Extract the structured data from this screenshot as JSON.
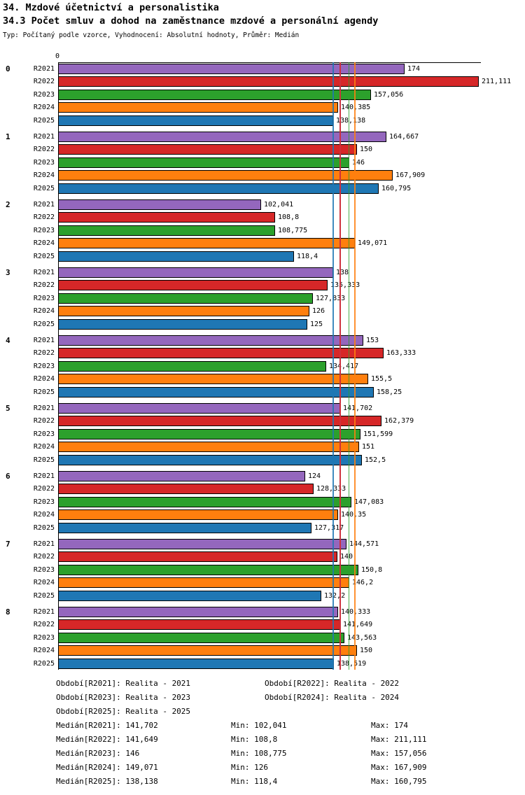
{
  "header": {
    "title": "34. Mzdové účetnictví a personalistika",
    "subtitle": "34.3 Počet smluv a dohod na zaměstnance mzdové a personální agendy",
    "meta": "Typ: Počítaný podle vzorce, Vyhodnocení: Absolutní hodnoty, Průměr: Medián"
  },
  "chart_data": {
    "type": "bar",
    "orientation": "horizontal",
    "title": "34.3 Počet smluv a dohod na zaměstnance mzdové a personální agendy",
    "xlabel": "",
    "ylabel": "",
    "xlim": [
      0,
      211.111
    ],
    "x_ticks": [
      "0"
    ],
    "grid": false,
    "legend_position": "bottom",
    "categories": [
      "0",
      "1",
      "2",
      "3",
      "4",
      "5",
      "6",
      "7",
      "8"
    ],
    "series": [
      {
        "name": "R2021",
        "color": "#9467bd",
        "values": [
          174,
          164.667,
          102.041,
          138,
          153,
          141.702,
          124,
          144.571,
          140.333
        ],
        "labels": [
          "174",
          "164,667",
          "102,041",
          "138",
          "153",
          "141,702",
          "124",
          "144,571",
          "140,333"
        ],
        "median": 141.702
      },
      {
        "name": "R2022",
        "color": "#d62728",
        "values": [
          211.111,
          150,
          108.8,
          135.333,
          163.333,
          162.379,
          128.333,
          140,
          141.649
        ],
        "labels": [
          "211,111",
          "150",
          "108,8",
          "135,333",
          "163,333",
          "162,379",
          "128,333",
          "140",
          "141,649"
        ],
        "median": 141.649
      },
      {
        "name": "R2023",
        "color": "#2ca02c",
        "values": [
          157.056,
          146,
          108.775,
          127.833,
          134.417,
          151.599,
          147.083,
          150.8,
          143.563
        ],
        "labels": [
          "157,056",
          "146",
          "108,775",
          "127,833",
          "134,417",
          "151,599",
          "147,083",
          "150,8",
          "143,563"
        ],
        "median": 146
      },
      {
        "name": "R2024",
        "color": "#ff7f0e",
        "values": [
          140.385,
          167.909,
          149.071,
          126,
          155.5,
          151,
          140.35,
          146.2,
          150
        ],
        "labels": [
          "140,385",
          "167,909",
          "149,071",
          "126",
          "155,5",
          "151",
          "140,35",
          "146,2",
          "150"
        ],
        "median": 149.071
      },
      {
        "name": "R2025",
        "color": "#1f77b4",
        "values": [
          138.138,
          160.795,
          118.4,
          125,
          158.25,
          152.5,
          127.317,
          132.2,
          138.519
        ],
        "labels": [
          "138,138",
          "160,795",
          "118,4",
          "125",
          "158,25",
          "152,5",
          "127,317",
          "132,2",
          "138,519"
        ],
        "median": 138.138
      }
    ]
  },
  "legend": {
    "items": [
      "Období[R2021]: Realita - 2021",
      "Období[R2022]: Realita - 2022",
      "Období[R2023]: Realita - 2023",
      "Období[R2024]: Realita - 2024",
      "Období[R2025]: Realita - 2025"
    ]
  },
  "stats": {
    "rows": [
      {
        "median": "Medián[R2021]: 141,702",
        "min": "Min: 102,041",
        "max": "Max: 174"
      },
      {
        "median": "Medián[R2022]: 141,649",
        "min": "Min: 108,8",
        "max": "Max: 211,111"
      },
      {
        "median": "Medián[R2023]: 146",
        "min": "Min: 108,775",
        "max": "Max: 157,056"
      },
      {
        "median": "Medián[R2024]: 149,071",
        "min": "Min: 126",
        "max": "Max: 167,909"
      },
      {
        "median": "Medián[R2025]: 138,138",
        "min": "Min: 118,4",
        "max": "Max: 160,795"
      }
    ]
  }
}
